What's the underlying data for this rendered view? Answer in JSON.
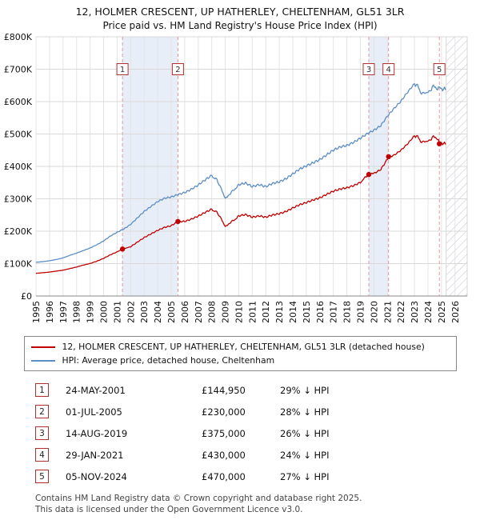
{
  "chart_data": {
    "type": "line",
    "title": "12, HOLMER CRESCENT, UP HATHERLEY, CHELTENHAM, GL51 3LR",
    "subtitle": "Price paid vs. HM Land Registry's House Price Index (HPI)",
    "x_range": [
      1995,
      2026.9
    ],
    "y_range": [
      0,
      800
    ],
    "y_unit": "GBP thousands",
    "y_ticks": [
      "£0",
      "£100K",
      "£200K",
      "£300K",
      "£400K",
      "£500K",
      "£600K",
      "£700K",
      "£800K"
    ],
    "x_ticks": [
      "1995",
      "1996",
      "1997",
      "1998",
      "1999",
      "2000",
      "2001",
      "2002",
      "2003",
      "2004",
      "2005",
      "2006",
      "2007",
      "2008",
      "2009",
      "2010",
      "2011",
      "2012",
      "2013",
      "2014",
      "2015",
      "2016",
      "2017",
      "2018",
      "2019",
      "2020",
      "2021",
      "2022",
      "2023",
      "2024",
      "2025",
      "2026"
    ],
    "grid": true,
    "legend_position": "below",
    "hatch_from": 2025.35,
    "bands": [
      [
        2001.4,
        2005.5
      ],
      [
        2019.62,
        2021.08
      ]
    ],
    "band_color": "#e8eef8",
    "sale_line_color": "#e09999",
    "series": [
      {
        "name": "12, HOLMER CRESCENT, UP HATHERLEY, CHELTENHAM, GL51 3LR (detached house)",
        "color": "#c00000",
        "points": [
          [
            1995,
            70
          ],
          [
            1995.5,
            72
          ],
          [
            1996,
            74
          ],
          [
            1996.5,
            77
          ],
          [
            1997,
            80
          ],
          [
            1997.5,
            85
          ],
          [
            1998,
            90
          ],
          [
            1998.5,
            96
          ],
          [
            1999,
            101
          ],
          [
            1999.5,
            108
          ],
          [
            2000,
            117
          ],
          [
            2000.5,
            128
          ],
          [
            2001,
            137
          ],
          [
            2001.4,
            144.95
          ],
          [
            2002,
            153
          ],
          [
            2002.5,
            167
          ],
          [
            2003,
            181
          ],
          [
            2003.5,
            192
          ],
          [
            2004,
            203
          ],
          [
            2004.5,
            212
          ],
          [
            2005,
            217
          ],
          [
            2005.5,
            230
          ],
          [
            2006,
            230
          ],
          [
            2006.5,
            237
          ],
          [
            2007,
            246
          ],
          [
            2007.5,
            257
          ],
          [
            2008,
            267
          ],
          [
            2008.3,
            261
          ],
          [
            2008.7,
            239
          ],
          [
            2009,
            214
          ],
          [
            2009.3,
            223
          ],
          [
            2009.7,
            236
          ],
          [
            2010,
            246
          ],
          [
            2010.5,
            250
          ],
          [
            2011,
            242
          ],
          [
            2011.5,
            246
          ],
          [
            2012,
            242
          ],
          [
            2012.5,
            249
          ],
          [
            2013,
            253
          ],
          [
            2013.5,
            260
          ],
          [
            2014,
            271
          ],
          [
            2014.5,
            281
          ],
          [
            2015,
            288
          ],
          [
            2015.5,
            296
          ],
          [
            2016,
            303
          ],
          [
            2016.5,
            314
          ],
          [
            2017,
            324
          ],
          [
            2017.5,
            331
          ],
          [
            2018,
            335
          ],
          [
            2018.5,
            342
          ],
          [
            2019,
            352
          ],
          [
            2019.62,
            375
          ],
          [
            2020,
            380
          ],
          [
            2020.5,
            392
          ],
          [
            2021.08,
            430
          ],
          [
            2021.5,
            437
          ],
          [
            2022,
            452
          ],
          [
            2022.5,
            472
          ],
          [
            2023,
            497
          ],
          [
            2023.3,
            487
          ],
          [
            2023.6,
            473
          ],
          [
            2024,
            479
          ],
          [
            2024.4,
            492
          ],
          [
            2024.7,
            486
          ],
          [
            2024.84,
            470
          ],
          [
            2025,
            474
          ],
          [
            2025.3,
            468
          ]
        ]
      },
      {
        "name": "HPI: Average price, detached house, Cheltenham",
        "color": "#5b8ec4",
        "points": [
          [
            1995,
            104
          ],
          [
            1995.5,
            106
          ],
          [
            1996,
            109
          ],
          [
            1996.5,
            113
          ],
          [
            1997,
            118
          ],
          [
            1997.5,
            126
          ],
          [
            1998,
            133
          ],
          [
            1998.5,
            141
          ],
          [
            1999,
            149
          ],
          [
            1999.5,
            159
          ],
          [
            2000,
            171
          ],
          [
            2000.5,
            186
          ],
          [
            2001,
            198
          ],
          [
            2001.5,
            208
          ],
          [
            2002,
            222
          ],
          [
            2002.5,
            242
          ],
          [
            2003,
            262
          ],
          [
            2003.5,
            277
          ],
          [
            2004,
            292
          ],
          [
            2004.5,
            302
          ],
          [
            2005,
            306
          ],
          [
            2005.5,
            313
          ],
          [
            2006,
            319
          ],
          [
            2006.5,
            329
          ],
          [
            2007,
            342
          ],
          [
            2007.5,
            357
          ],
          [
            2008,
            371
          ],
          [
            2008.3,
            362
          ],
          [
            2008.7,
            332
          ],
          [
            2009,
            301
          ],
          [
            2009.3,
            312
          ],
          [
            2009.7,
            330
          ],
          [
            2010,
            342
          ],
          [
            2010.5,
            347
          ],
          [
            2011,
            336
          ],
          [
            2011.5,
            342
          ],
          [
            2012,
            336
          ],
          [
            2012.5,
            346
          ],
          [
            2013,
            351
          ],
          [
            2013.5,
            361
          ],
          [
            2014,
            376
          ],
          [
            2014.5,
            391
          ],
          [
            2015,
            401
          ],
          [
            2015.5,
            411
          ],
          [
            2016,
            421
          ],
          [
            2016.5,
            436
          ],
          [
            2017,
            451
          ],
          [
            2017.5,
            461
          ],
          [
            2018,
            466
          ],
          [
            2018.5,
            476
          ],
          [
            2019,
            489
          ],
          [
            2019.5,
            503
          ],
          [
            2020,
            514
          ],
          [
            2020.5,
            528
          ],
          [
            2021,
            558
          ],
          [
            2021.5,
            582
          ],
          [
            2022,
            604
          ],
          [
            2022.5,
            632
          ],
          [
            2023,
            658
          ],
          [
            2023.3,
            642
          ],
          [
            2023.6,
            622
          ],
          [
            2024,
            630
          ],
          [
            2024.4,
            648
          ],
          [
            2024.7,
            640
          ],
          [
            2025,
            642
          ],
          [
            2025.3,
            636
          ]
        ]
      }
    ],
    "sales": [
      {
        "label": "1",
        "year": 2001.4,
        "price": 144.95
      },
      {
        "label": "2",
        "year": 2005.5,
        "price": 230
      },
      {
        "label": "3",
        "year": 2019.62,
        "price": 375
      },
      {
        "label": "4",
        "year": 2021.08,
        "price": 430
      },
      {
        "label": "5",
        "year": 2024.84,
        "price": 470
      }
    ]
  },
  "legend": {
    "property": "12, HOLMER CRESCENT, UP HATHERLEY, CHELTENHAM, GL51 3LR (detached house)",
    "hpi": "HPI: Average price, detached house, Cheltenham"
  },
  "table": {
    "rows": [
      {
        "num": "1",
        "date": "24-MAY-2001",
        "price": "£144,950",
        "vs_hpi": "29% ↓ HPI"
      },
      {
        "num": "2",
        "date": "01-JUL-2005",
        "price": "£230,000",
        "vs_hpi": "28% ↓ HPI"
      },
      {
        "num": "3",
        "date": "14-AUG-2019",
        "price": "£375,000",
        "vs_hpi": "26% ↓ HPI"
      },
      {
        "num": "4",
        "date": "29-JAN-2021",
        "price": "£430,000",
        "vs_hpi": "24% ↓ HPI"
      },
      {
        "num": "5",
        "date": "05-NOV-2024",
        "price": "£470,000",
        "vs_hpi": "27% ↓ HPI"
      }
    ]
  },
  "footer": {
    "line1": "Contains HM Land Registry data © Crown copyright and database right 2025.",
    "line2": "This data is licensed under the Open Government Licence v3.0."
  }
}
